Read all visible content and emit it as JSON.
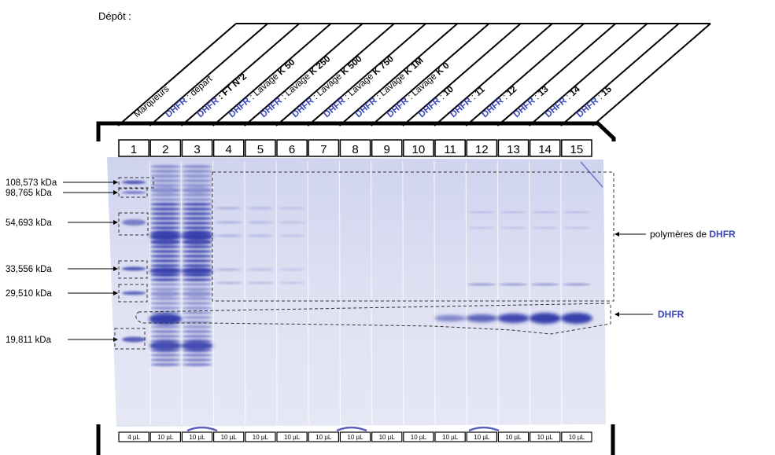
{
  "header": {
    "title": "Dépôt :"
  },
  "lanes": [
    {
      "number": "1",
      "label": [
        {
          "t": "Marqueurs"
        }
      ],
      "volume": "4 µL"
    },
    {
      "number": "2",
      "label": [
        {
          "t": "DHFR",
          "c": "blue"
        },
        {
          "t": " : départ"
        }
      ],
      "volume": "10 µL"
    },
    {
      "number": "3",
      "label": [
        {
          "t": "DHFR",
          "c": "blue"
        },
        {
          "t": " : FT N°2",
          "b": true
        }
      ],
      "volume": "10 µL"
    },
    {
      "number": "4",
      "label": [
        {
          "t": "DHFR",
          "c": "blue"
        },
        {
          "t": " : Lavage "
        },
        {
          "t": "K 50",
          "b": true
        }
      ],
      "volume": "10 µL"
    },
    {
      "number": "5",
      "label": [
        {
          "t": "DHFR",
          "c": "blue"
        },
        {
          "t": " : Lavage "
        },
        {
          "t": "K 250",
          "b": true
        }
      ],
      "volume": "10 µL"
    },
    {
      "number": "6",
      "label": [
        {
          "t": "DHFR",
          "c": "blue"
        },
        {
          "t": " : Lavage "
        },
        {
          "t": "K 500",
          "b": true
        }
      ],
      "volume": "10 µL"
    },
    {
      "number": "7",
      "label": [
        {
          "t": "DHFR",
          "c": "blue"
        },
        {
          "t": " : Lavage "
        },
        {
          "t": "K 750",
          "b": true
        }
      ],
      "volume": "10 µL"
    },
    {
      "number": "8",
      "label": [
        {
          "t": "DHFR",
          "c": "blue"
        },
        {
          "t": " : Lavage "
        },
        {
          "t": "K 1M",
          "b": true
        }
      ],
      "volume": "10 µL"
    },
    {
      "number": "9",
      "label": [
        {
          "t": "DHFR",
          "c": "blue"
        },
        {
          "t": " : Lavage "
        },
        {
          "t": "K 0",
          "b": true
        }
      ],
      "volume": "10 µL"
    },
    {
      "number": "10",
      "label": [
        {
          "t": "DHFR",
          "c": "blue"
        },
        {
          "t": " : "
        },
        {
          "t": "10",
          "b": true
        }
      ],
      "volume": "10 µL"
    },
    {
      "number": "11",
      "label": [
        {
          "t": "DHFR",
          "c": "blue"
        },
        {
          "t": " : "
        },
        {
          "t": "11",
          "b": true
        }
      ],
      "volume": "10 µL"
    },
    {
      "number": "12",
      "label": [
        {
          "t": "DHFR",
          "c": "blue"
        },
        {
          "t": " : "
        },
        {
          "t": "12",
          "b": true
        }
      ],
      "volume": "10 µL"
    },
    {
      "number": "13",
      "label": [
        {
          "t": "DHFR",
          "c": "blue"
        },
        {
          "t": " : "
        },
        {
          "t": "13",
          "b": true
        }
      ],
      "volume": "10 µL"
    },
    {
      "number": "14",
      "label": [
        {
          "t": "DHFR",
          "c": "blue"
        },
        {
          "t": " : "
        },
        {
          "t": "14",
          "b": true
        }
      ],
      "volume": "10 µL"
    },
    {
      "number": "15",
      "label": [
        {
          "t": "DHFR",
          "c": "blue"
        },
        {
          "t": " : "
        },
        {
          "t": "15",
          "b": true
        }
      ],
      "volume": "10 µL"
    }
  ],
  "markers": [
    {
      "label": "108,573 kDa"
    },
    {
      "label": "98,765 kDa"
    },
    {
      "label": "54,693 kDa"
    },
    {
      "label": "33,556 kDa"
    },
    {
      "label": "29,510 kDa"
    },
    {
      "label": "19,811 kDa"
    }
  ],
  "annotations": {
    "polymers_prefix": "polymères de ",
    "polymers_protein": "DHFR",
    "monomer": "DHFR"
  },
  "colors": {
    "accent_blue": "#3a46b8",
    "gel_background": "#dcdff1",
    "band": "#2f39a8",
    "text": "#000000"
  }
}
